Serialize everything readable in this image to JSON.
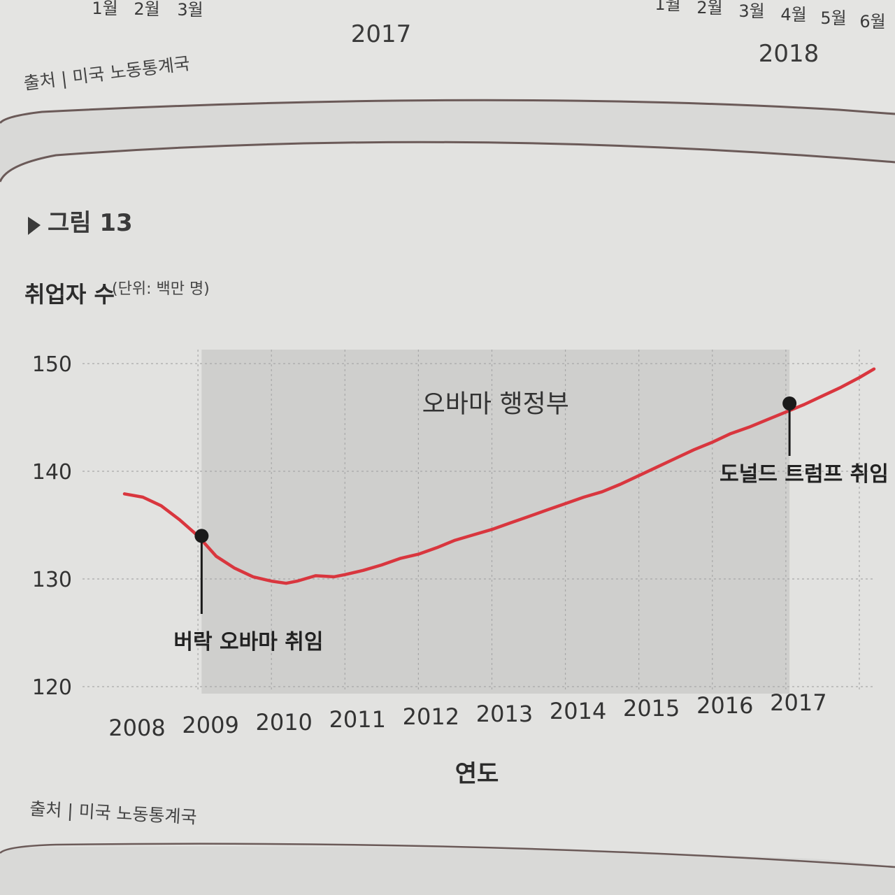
{
  "top_fragment": {
    "month_labels_left": [
      "1월",
      "2월",
      "3월"
    ],
    "month_labels_right": [
      "1월",
      "2월",
      "3월",
      "4월",
      "5월",
      "6월"
    ],
    "year_left": "2017",
    "year_right": "2018",
    "source": "출처 | 미국 노동통계국"
  },
  "figure": {
    "label": "그림 13",
    "source": "출처 | 미국 노동통계국"
  },
  "chart_data": {
    "type": "line",
    "ylabel": "취업자 수",
    "ylabel_unit": "(단위: 백만 명)",
    "xlabel": "연도",
    "ylim": [
      120,
      150
    ],
    "xlim": [
      2008,
      2018.2
    ],
    "yticks": [
      120,
      130,
      140,
      150
    ],
    "xticks": [
      {
        "value": 2008,
        "label": "2008"
      },
      {
        "value": 2009,
        "label": "2009"
      },
      {
        "value": 2010,
        "label": "2010"
      },
      {
        "value": 2011,
        "label": "2011"
      },
      {
        "value": 2012,
        "label": "2012"
      },
      {
        "value": 2013,
        "label": "2013"
      },
      {
        "value": 2014,
        "label": "2014"
      },
      {
        "value": 2015,
        "label": "2015"
      },
      {
        "value": 2016,
        "label": "2016"
      },
      {
        "value": 2017,
        "label": "2017"
      }
    ],
    "grid": true,
    "shaded_region": {
      "label": "오바마 행정부",
      "x_start": 2009.05,
      "x_end": 2017.05
    },
    "series": [
      {
        "color": "#d9363e",
        "x": [
          2008.0,
          2008.25,
          2008.5,
          2008.75,
          2009.0,
          2009.25,
          2009.5,
          2009.75,
          2010.0,
          2010.2,
          2010.35,
          2010.6,
          2010.85,
          2011.0,
          2011.25,
          2011.5,
          2011.75,
          2012.0,
          2012.25,
          2012.5,
          2012.75,
          2013.0,
          2013.25,
          2013.5,
          2013.75,
          2014.0,
          2014.25,
          2014.5,
          2014.75,
          2015.0,
          2015.25,
          2015.5,
          2015.75,
          2016.0,
          2016.25,
          2016.5,
          2016.75,
          2017.0,
          2017.25,
          2017.5,
          2017.75,
          2018.0,
          2018.2
        ],
        "y": [
          137.9,
          137.6,
          136.8,
          135.5,
          134.0,
          132.1,
          131.0,
          130.2,
          129.8,
          129.6,
          129.8,
          130.3,
          130.2,
          130.4,
          130.8,
          131.3,
          131.9,
          132.3,
          132.9,
          133.6,
          134.1,
          134.6,
          135.2,
          135.8,
          136.4,
          137.0,
          137.6,
          138.1,
          138.8,
          139.6,
          140.4,
          141.2,
          142.0,
          142.7,
          143.5,
          144.1,
          144.8,
          145.5,
          146.2,
          147.0,
          147.8,
          148.7,
          149.5
        ]
      }
    ],
    "annotations": [
      {
        "text": "버락 오바마 취임",
        "x": 2009.05,
        "y": 134.0
      },
      {
        "text": "도널드 트럼프 취임",
        "x": 2017.05,
        "y": 146.3
      }
    ]
  },
  "colors": {
    "page": "#d9d9d7",
    "panel": "#e2e2e0",
    "shade": "#cfcfcd",
    "grid": "#a8a8a8",
    "frame": "#6b5a58",
    "line": "#d9363e",
    "marker": "#1a1a1a"
  }
}
